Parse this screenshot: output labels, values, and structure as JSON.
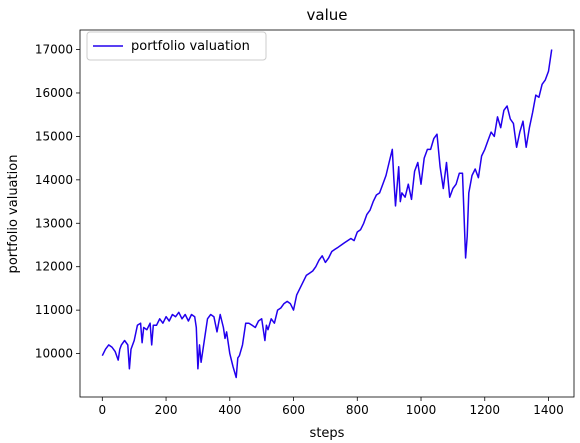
{
  "chart_data": {
    "type": "line",
    "title": "value",
    "xlabel": "steps",
    "ylabel": "portfolio valuation",
    "xlim": [
      -70,
      1480
    ],
    "ylim": [
      9000,
      17450
    ],
    "xticks": [
      0,
      200,
      400,
      600,
      800,
      1000,
      1200,
      1400
    ],
    "yticks": [
      10000,
      11000,
      12000,
      13000,
      14000,
      15000,
      16000,
      17000
    ],
    "grid": false,
    "legend_position": "upper-left",
    "series": [
      {
        "name": "portfolio valuation",
        "color": "#2200ee",
        "x": [
          0,
          10,
          20,
          30,
          40,
          50,
          55,
          60,
          70,
          80,
          85,
          90,
          100,
          110,
          120,
          125,
          130,
          140,
          150,
          155,
          160,
          170,
          180,
          190,
          200,
          210,
          220,
          230,
          240,
          250,
          260,
          270,
          280,
          290,
          295,
          300,
          305,
          310,
          320,
          330,
          340,
          350,
          360,
          370,
          380,
          385,
          390,
          400,
          410,
          420,
          425,
          430,
          440,
          450,
          460,
          470,
          480,
          490,
          500,
          510,
          515,
          520,
          530,
          540,
          550,
          560,
          570,
          580,
          590,
          600,
          610,
          620,
          630,
          640,
          650,
          660,
          670,
          680,
          690,
          700,
          710,
          720,
          730,
          740,
          750,
          760,
          770,
          780,
          790,
          800,
          810,
          820,
          830,
          840,
          850,
          860,
          870,
          880,
          890,
          900,
          910,
          915,
          920,
          930,
          935,
          940,
          950,
          960,
          970,
          980,
          990,
          1000,
          1010,
          1020,
          1030,
          1040,
          1050,
          1060,
          1070,
          1080,
          1090,
          1100,
          1110,
          1120,
          1130,
          1140,
          1145,
          1150,
          1160,
          1170,
          1180,
          1190,
          1200,
          1210,
          1220,
          1230,
          1240,
          1250,
          1260,
          1270,
          1280,
          1290,
          1300,
          1310,
          1320,
          1330,
          1340,
          1350,
          1360,
          1370,
          1380,
          1390,
          1400,
          1410
        ],
        "values": [
          9950,
          10100,
          10200,
          10150,
          10050,
          9850,
          10100,
          10200,
          10300,
          10200,
          9650,
          10100,
          10300,
          10650,
          10700,
          10250,
          10600,
          10550,
          10700,
          10200,
          10650,
          10650,
          10800,
          10700,
          10850,
          10750,
          10900,
          10850,
          10950,
          10800,
          10900,
          10750,
          10900,
          10850,
          10600,
          9650,
          10200,
          9800,
          10300,
          10800,
          10900,
          10850,
          10500,
          10900,
          10600,
          10350,
          10500,
          10000,
          9700,
          9450,
          9900,
          9950,
          10200,
          10700,
          10700,
          10650,
          10600,
          10750,
          10800,
          10300,
          10650,
          10550,
          10800,
          10700,
          11000,
          11050,
          11150,
          11200,
          11150,
          11000,
          11350,
          11500,
          11650,
          11800,
          11850,
          11900,
          12000,
          12150,
          12250,
          12100,
          12200,
          12350,
          12400,
          12450,
          12500,
          12550,
          12600,
          12650,
          12600,
          12800,
          12850,
          13000,
          13200,
          13300,
          13500,
          13650,
          13700,
          13900,
          14100,
          14400,
          14700,
          14000,
          13400,
          14300,
          13500,
          13700,
          13600,
          13900,
          13550,
          14200,
          14400,
          13900,
          14500,
          14700,
          14700,
          14950,
          15050,
          14300,
          13800,
          14400,
          13600,
          13800,
          13900,
          14150,
          14150,
          12200,
          12700,
          13700,
          14100,
          14250,
          14050,
          14550,
          14700,
          14900,
          15100,
          15000,
          15450,
          15200,
          15600,
          15700,
          15400,
          15300,
          14750,
          15100,
          15350,
          14750,
          15200,
          15550,
          15950,
          15900,
          16200,
          16300,
          16500,
          17000
        ]
      }
    ]
  }
}
